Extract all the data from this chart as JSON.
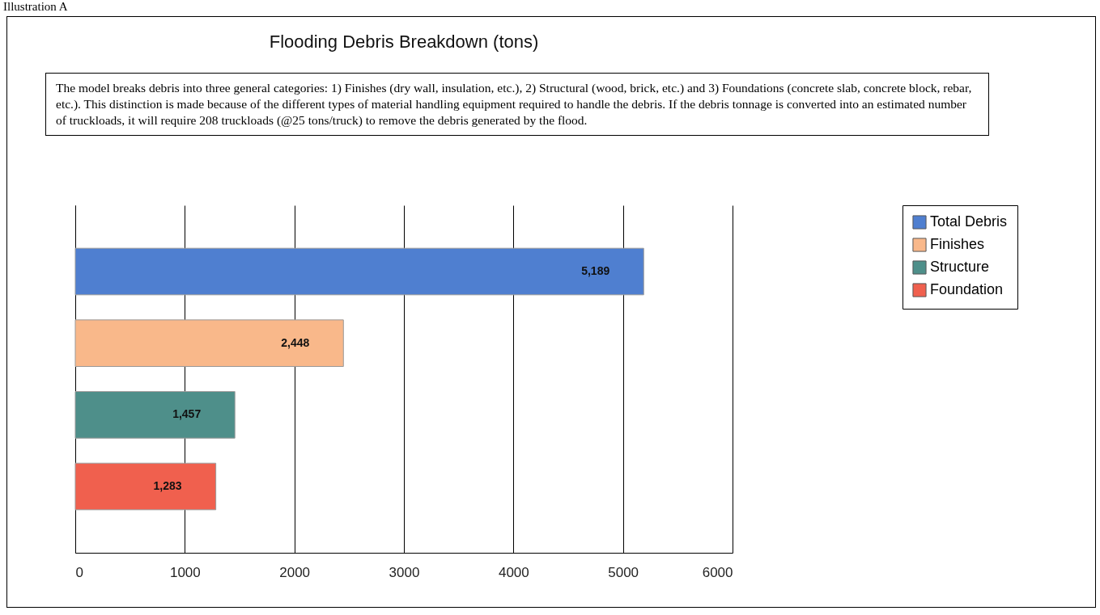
{
  "chart_data": {
    "type": "bar",
    "orientation": "horizontal",
    "title": "Flooding Debris Breakdown (tons)",
    "annotations": [
      "Illustration A",
      "The model breaks debris into three general categories: 1) Finishes (dry wall, insulation, etc.), 2) Structural (wood, brick, etc.) and 3) Foundations (concrete slab, concrete block, rebar, etc.). This distinction is made because of the different types of material handling equipment required to handle the debris. If the debris tonnage is converted into an estimated number of truckloads, it will require 208 truckloads (@25 tons/truck) to remove the debris generated by the flood."
    ],
    "categories": [
      null,
      null,
      null,
      null
    ],
    "series": [
      {
        "name": "Total Debris",
        "color": "#4f7fd0",
        "values": [
          5189,
          null,
          null,
          null
        ],
        "value_labels": [
          "5,189",
          null,
          null,
          null
        ]
      },
      {
        "name": "Finishes",
        "color": "#f9b88a",
        "values": [
          null,
          2448,
          null,
          null
        ],
        "value_labels": [
          null,
          "2,448",
          null,
          null
        ]
      },
      {
        "name": "Structure",
        "color": "#4e8f8a",
        "values": [
          null,
          null,
          1457,
          null
        ],
        "value_labels": [
          null,
          null,
          "1,457",
          null
        ]
      },
      {
        "name": "Foundation",
        "color": "#f0604e",
        "values": [
          null,
          null,
          null,
          1283
        ],
        "value_labels": [
          null,
          null,
          null,
          "1,283"
        ]
      }
    ],
    "xlim": [
      0,
      6000
    ],
    "xticks": [
      0,
      1000,
      2000,
      3000,
      4000,
      5000,
      6000
    ],
    "grid": "x",
    "legend": "right",
    "tick_labels": "x"
  }
}
